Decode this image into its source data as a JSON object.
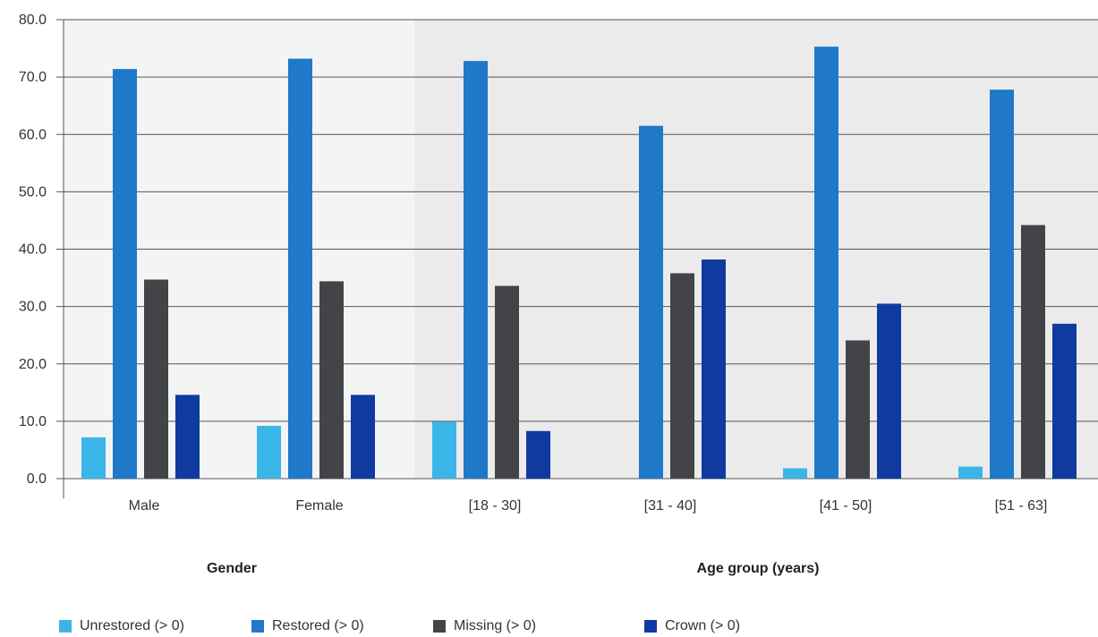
{
  "chart_data": {
    "type": "bar",
    "categories": [
      "Male",
      "Female",
      "[18 - 30]",
      "[31 - 40]",
      "[41 - 50]",
      "[51 - 63]"
    ],
    "groups": [
      {
        "label": "Gender",
        "categories": [
          "Male",
          "Female"
        ],
        "background": "#f3f4f4"
      },
      {
        "label": "Age group (years)",
        "categories": [
          "[18 - 30]",
          "[31 - 40]",
          "[41 - 50]",
          "[51 - 63]"
        ],
        "background": "#ebebeb"
      }
    ],
    "series": [
      {
        "name": "Unrestored (> 0)",
        "color": "#3bb5e8",
        "values": [
          7.2,
          9.2,
          9.9,
          0,
          1.8,
          2.1
        ]
      },
      {
        "name": "Restored (> 0)",
        "color": "#1f78c8",
        "values": [
          71.4,
          73.2,
          72.8,
          61.5,
          75.3,
          67.8
        ]
      },
      {
        "name": "Missing (> 0)",
        "color": "#434448",
        "values": [
          34.7,
          34.4,
          33.6,
          35.8,
          24.1,
          44.2
        ]
      },
      {
        "name": "Crown (> 0)",
        "color": "#0f3aa0",
        "values": [
          14.6,
          14.6,
          8.3,
          38.2,
          30.5,
          27.0
        ]
      }
    ],
    "ylim": [
      0,
      80
    ],
    "yticks": [
      "0.0",
      "10.0",
      "20.0",
      "30.0",
      "40.0",
      "50.0",
      "60.0",
      "70.0",
      "80.0"
    ],
    "grid": true,
    "legend_position": "bottom"
  }
}
